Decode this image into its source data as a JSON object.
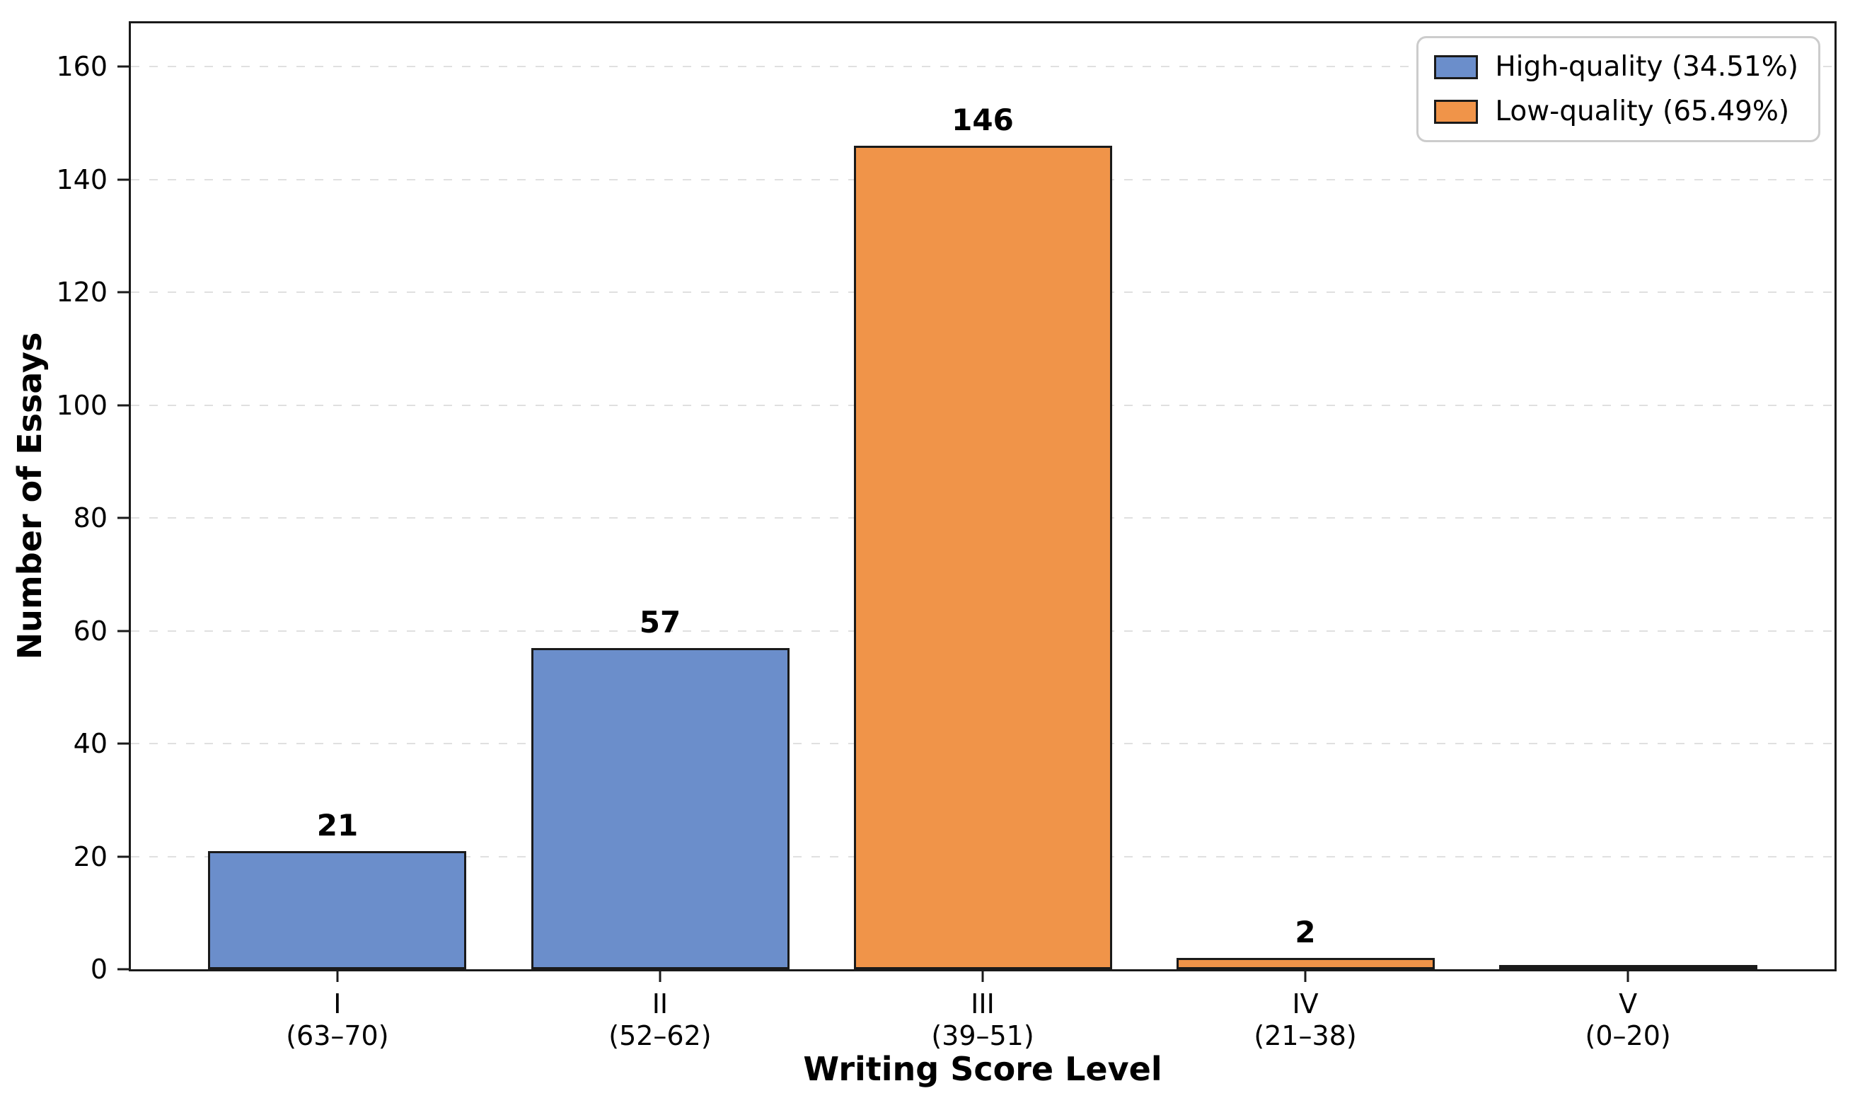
{
  "figure": {
    "background": "#ffffff",
    "frame_color": "#1a1a1a",
    "gridline_color": "#e0e0e0"
  },
  "chart_data": {
    "type": "bar",
    "title": "",
    "xlabel": "Writing Score Level",
    "ylabel": "Number of Essays",
    "categories": [
      {
        "label": "I",
        "range": "(63–70)"
      },
      {
        "label": "II",
        "range": "(52–62)"
      },
      {
        "label": "III",
        "range": "(39–51)"
      },
      {
        "label": "IV",
        "range": "(21–38)"
      },
      {
        "label": "V",
        "range": "(0–20)"
      }
    ],
    "values": [
      21,
      57,
      146,
      2,
      0
    ],
    "bar_labels": [
      "21",
      "57",
      "146",
      "2",
      ""
    ],
    "bar_series": [
      0,
      0,
      1,
      1,
      1
    ],
    "series": [
      {
        "name": "High-quality (34.51%)",
        "color": "#6b8ecb"
      },
      {
        "name": "Low-quality (65.49%)",
        "color": "#f09449"
      }
    ],
    "bar_edge_color": "#1a1a1a",
    "bar_width_fraction": 0.8,
    "ylim": [
      0,
      167.7
    ],
    "yticks": [
      0,
      20,
      40,
      60,
      80,
      100,
      120,
      140,
      160
    ],
    "grid": "horizontal-dashed",
    "legend_position": "upper right"
  }
}
